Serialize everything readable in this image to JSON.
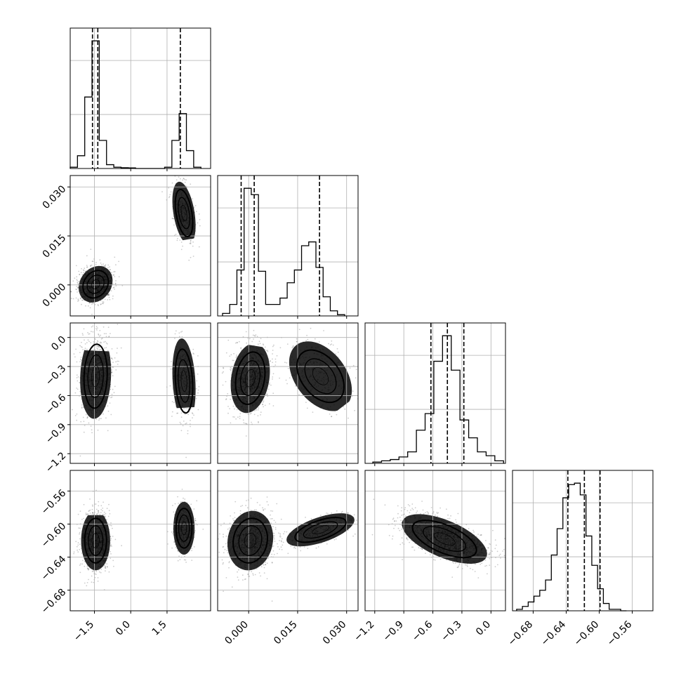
{
  "chart_data": {
    "type": "corner",
    "grid": true,
    "quantile_lines": "dashed",
    "axes": [
      {
        "range": [
          -2.5,
          3.3
        ],
        "ticks": [
          -1.5,
          0.0,
          1.5
        ],
        "tick_labels": [
          "−1.5",
          "0.0",
          "1.5"
        ]
      },
      {
        "range": [
          -0.0095,
          0.0335
        ],
        "ticks": [
          0.0,
          0.015,
          0.03
        ],
        "tick_labels": [
          "0.000",
          "0.015",
          "0.030"
        ]
      },
      {
        "range": [
          -1.3,
          0.15
        ],
        "ticks": [
          -1.2,
          -0.9,
          -0.6,
          -0.3,
          0.0
        ],
        "tick_labels": [
          "−1.2",
          "−0.9",
          "−0.6",
          "−0.3",
          "0.0"
        ]
      },
      {
        "range": [
          -0.705,
          -0.535
        ],
        "ticks": [
          -0.68,
          -0.64,
          -0.6,
          -0.56
        ],
        "tick_labels": [
          "−0.68",
          "−0.64",
          "−0.60",
          "−0.56"
        ]
      }
    ],
    "histograms": [
      {
        "param": 0,
        "edges": [
          -2.5,
          -2.2,
          -1.9,
          -1.6,
          -1.3,
          -1.0,
          -0.7,
          -0.4,
          -0.1,
          0.2,
          0.5,
          0.8,
          1.1,
          1.4,
          1.7,
          2.0,
          2.3,
          2.6,
          2.9
        ],
        "counts": [
          0.01,
          0.1,
          0.56,
          1.0,
          0.22,
          0.03,
          0.01,
          0.006,
          0.005,
          0,
          0,
          0,
          0,
          0.01,
          0.22,
          0.43,
          0.14,
          0.01
        ],
        "quantiles": [
          -1.58,
          -1.36,
          2.05
        ]
      },
      {
        "param": 1,
        "edges": [
          -0.008,
          -0.0058,
          -0.0036,
          -0.0014,
          0.0008,
          0.003,
          0.0052,
          0.0074,
          0.0096,
          0.0118,
          0.014,
          0.0162,
          0.0184,
          0.0206,
          0.0228,
          0.025,
          0.0272,
          0.0294
        ],
        "counts": [
          0.02,
          0.09,
          0.36,
          1.0,
          0.95,
          0.35,
          0.09,
          0.09,
          0.14,
          0.26,
          0.36,
          0.55,
          0.58,
          0.38,
          0.15,
          0.04,
          0.01
        ],
        "quantiles": [
          -0.0023,
          0.0017,
          0.0217
        ]
      },
      {
        "param": 2,
        "edges": [
          -1.22,
          -1.13,
          -1.04,
          -0.95,
          -0.86,
          -0.77,
          -0.68,
          -0.59,
          -0.5,
          -0.41,
          -0.32,
          -0.23,
          -0.14,
          -0.05,
          0.04,
          0.13
        ],
        "counts": [
          0.01,
          0.02,
          0.03,
          0.05,
          0.09,
          0.26,
          0.39,
          0.8,
          1.0,
          0.73,
          0.34,
          0.2,
          0.09,
          0.06,
          0.02
        ],
        "quantiles": [
          -0.62,
          -0.45,
          -0.28
        ]
      },
      {
        "param": 3,
        "edges": [
          -0.7,
          -0.693,
          -0.686,
          -0.679,
          -0.672,
          -0.665,
          -0.658,
          -0.651,
          -0.644,
          -0.637,
          -0.63,
          -0.623,
          -0.616,
          -0.609,
          -0.602,
          -0.595,
          -0.588,
          -0.581,
          -0.574,
          -0.567
        ],
        "counts": [
          0.01,
          0.03,
          0.06,
          0.1,
          0.14,
          0.21,
          0.38,
          0.56,
          0.77,
          0.86,
          0.87,
          0.79,
          0.51,
          0.31,
          0.15,
          0.05,
          0.01,
          0.01,
          0.0
        ],
        "quantiles": [
          -0.638,
          -0.618,
          -0.599
        ]
      }
    ],
    "scatter_clusters": [
      {
        "row": 1,
        "col": 0,
        "clusters": [
          {
            "center": [
              -1.45,
              0.0002
            ],
            "sd": [
              0.35,
              0.0028
            ],
            "corr": 0.2,
            "weight": 0.72
          },
          {
            "center": [
              2.2,
              0.022
            ],
            "sd": [
              0.24,
              0.0048
            ],
            "corr": -0.4,
            "weight": 0.28
          }
        ]
      },
      {
        "row": 2,
        "col": 0,
        "clusters": [
          {
            "center": [
              -1.45,
              -0.4
            ],
            "sd": [
              0.32,
              0.22
            ],
            "corr": 0.1,
            "weight": 0.72
          },
          {
            "center": [
              2.2,
              -0.45
            ],
            "sd": [
              0.24,
              0.22
            ],
            "corr": -0.2,
            "weight": 0.28
          }
        ]
      },
      {
        "row": 2,
        "col": 1,
        "clusters": [
          {
            "center": [
              0.0005,
              -0.42
            ],
            "sd": [
              0.003,
              0.18
            ],
            "corr": 0.2,
            "weight": 0.72
          },
          {
            "center": [
              0.022,
              -0.4
            ],
            "sd": [
              0.0048,
              0.18
            ],
            "corr": -0.4,
            "weight": 0.28
          }
        ]
      },
      {
        "row": 3,
        "col": 0,
        "clusters": [
          {
            "center": [
              -1.45,
              -0.62
            ],
            "sd": [
              0.3,
              0.018
            ],
            "corr": 0.0,
            "weight": 0.72
          },
          {
            "center": [
              2.2,
              -0.605
            ],
            "sd": [
              0.22,
              0.016
            ],
            "corr": 0.0,
            "weight": 0.28
          }
        ]
      },
      {
        "row": 3,
        "col": 1,
        "clusters": [
          {
            "center": [
              0.0005,
              -0.62
            ],
            "sd": [
              0.0035,
              0.018
            ],
            "corr": 0.1,
            "weight": 0.72
          },
          {
            "center": [
              0.022,
              -0.607
            ],
            "sd": [
              0.0052,
              0.01
            ],
            "corr": 0.6,
            "weight": 0.28
          }
        ]
      },
      {
        "row": 3,
        "col": 2,
        "clusters": [
          {
            "center": [
              -0.48,
              -0.618
            ],
            "sd": [
              0.22,
              0.015
            ],
            "corr": -0.6,
            "weight": 1.0
          }
        ]
      }
    ]
  }
}
